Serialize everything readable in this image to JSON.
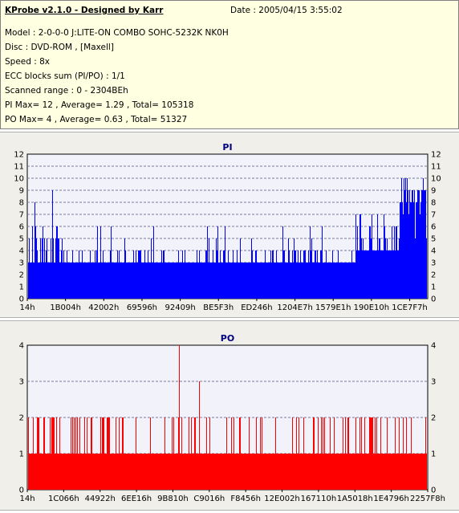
{
  "info": {
    "title": "KProbe v2.1.0 - Designed by Karr",
    "date": "Date : 2005/04/15 3:55:02",
    "model": "Model : 2-0-0-0 J:LITE-ON COMBO SOHC-5232K NK0H",
    "disc": "Disc : DVD-ROM ,  [Maxell]",
    "speed": "Speed : 8x",
    "ecc": "ECC blocks sum (PI/PO) : 1/1",
    "scanned": "Scanned range : 0 - 2304BEh",
    "pi_summary": "PI Max= 12 , Average= 1.29 , Total= 105318",
    "po_summary": "PO Max= 4 , Average= 0.63 , Total= 51327"
  },
  "chart_data": [
    {
      "type": "bar",
      "title": "PI",
      "color": "#0000ff",
      "ylim": [
        0,
        12
      ],
      "yticks": [
        0,
        1,
        2,
        3,
        4,
        5,
        6,
        7,
        8,
        9,
        10,
        11,
        12
      ],
      "xticks": [
        "14h",
        "1B004h",
        "42002h",
        "69596h",
        "92409h",
        "BE5F3h",
        "ED246h",
        "1204E7h",
        "1579E1h",
        "190E10h",
        "1CE7F7h"
      ],
      "grid": true,
      "baseline": 3,
      "spike_max": 12
    },
    {
      "type": "bar",
      "title": "PO",
      "color": "#ff0000",
      "ylim": [
        0,
        4
      ],
      "yticks": [
        0,
        1,
        2,
        3,
        4
      ],
      "xticks": [
        "14h",
        "1C066h",
        "44922h",
        "6EE16h",
        "9B810h",
        "C9016h",
        "F8456h",
        "12E002h",
        "167110h",
        "1A5018h",
        "1E4796h",
        "2257F8h"
      ],
      "grid": true,
      "baseline": 1,
      "spike_max": 4
    }
  ]
}
